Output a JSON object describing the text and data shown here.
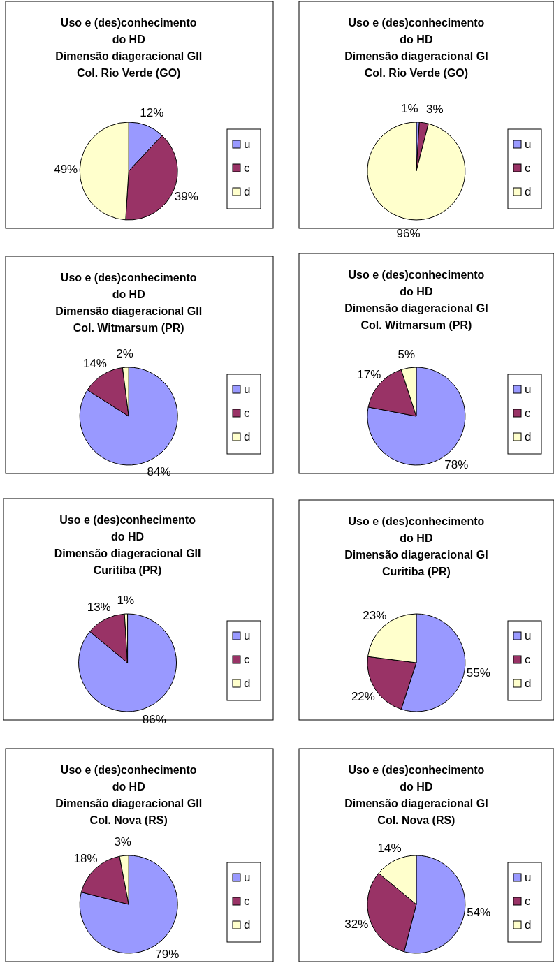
{
  "chart_data": [
    {
      "type": "pie",
      "title": "Uso e (des)conhecimento\ndo HD\nDimensão diageracional GII\nCol. Rio Verde (GO)",
      "categories": [
        "u",
        "c",
        "d"
      ],
      "values": [
        12,
        39,
        49
      ],
      "value_labels": [
        "12%",
        "39%",
        "49%"
      ],
      "colors": [
        "#9999ff",
        "#993366",
        "#ffffcc"
      ],
      "legend": "right"
    },
    {
      "type": "pie",
      "title": "Uso e (des)conhecimento\ndo HD\nDimensão diageracional GI\nCol. Rio Verde (GO)",
      "categories": [
        "u",
        "c",
        "d"
      ],
      "values": [
        1,
        3,
        96
      ],
      "value_labels": [
        "1%",
        "3%",
        "96%"
      ],
      "colors": [
        "#9999ff",
        "#993366",
        "#ffffcc"
      ],
      "legend": "right"
    },
    {
      "type": "pie",
      "title": "Uso e (des)conhecimento\ndo HD\nDimensão diageracional GII\nCol. Witmarsum (PR)",
      "categories": [
        "u",
        "c",
        "d"
      ],
      "values": [
        84,
        14,
        2
      ],
      "value_labels": [
        "84%",
        "14%",
        "2%"
      ],
      "colors": [
        "#9999ff",
        "#993366",
        "#ffffcc"
      ],
      "legend": "right"
    },
    {
      "type": "pie",
      "title": "Uso e (des)conhecimento\ndo HD\nDimensão diageracional GI\nCol. Witmarsum (PR)",
      "categories": [
        "u",
        "c",
        "d"
      ],
      "values": [
        78,
        17,
        5
      ],
      "value_labels": [
        "78%",
        "17%",
        "5%"
      ],
      "colors": [
        "#9999ff",
        "#993366",
        "#ffffcc"
      ],
      "legend": "right"
    },
    {
      "type": "pie",
      "title": "Uso e (des)conhecimento\ndo HD\nDimensão diageracional GII\nCuritiba (PR)",
      "categories": [
        "u",
        "c",
        "d"
      ],
      "values": [
        86,
        13,
        1
      ],
      "value_labels": [
        "86%",
        "13%",
        "1%"
      ],
      "colors": [
        "#9999ff",
        "#993366",
        "#ffffcc"
      ],
      "legend": "right"
    },
    {
      "type": "pie",
      "title": "Uso e (des)conhecimento\ndo HD\nDimensão diageracional GI\nCuritiba (PR)",
      "categories": [
        "u",
        "c",
        "d"
      ],
      "values": [
        55,
        22,
        23
      ],
      "value_labels": [
        "55%",
        "22%",
        "23%"
      ],
      "colors": [
        "#9999ff",
        "#993366",
        "#ffffcc"
      ],
      "legend": "right"
    },
    {
      "type": "pie",
      "title": "Uso e (des)conhecimento\ndo HD\nDimensão diageracional GII\nCol. Nova (RS)",
      "categories": [
        "u",
        "c",
        "d"
      ],
      "values": [
        79,
        18,
        3
      ],
      "value_labels": [
        "79%",
        "18%",
        "3%"
      ],
      "colors": [
        "#9999ff",
        "#993366",
        "#ffffcc"
      ],
      "legend": "right"
    },
    {
      "type": "pie",
      "title": "Uso e (des)conhecimento\ndo HD\nDimensão diageracional GI\nCol. Nova (RS)",
      "categories": [
        "u",
        "c",
        "d"
      ],
      "values": [
        54,
        32,
        14
      ],
      "value_labels": [
        "54%",
        "32%",
        "14%"
      ],
      "colors": [
        "#9999ff",
        "#993366",
        "#ffffcc"
      ],
      "legend": "right"
    }
  ]
}
